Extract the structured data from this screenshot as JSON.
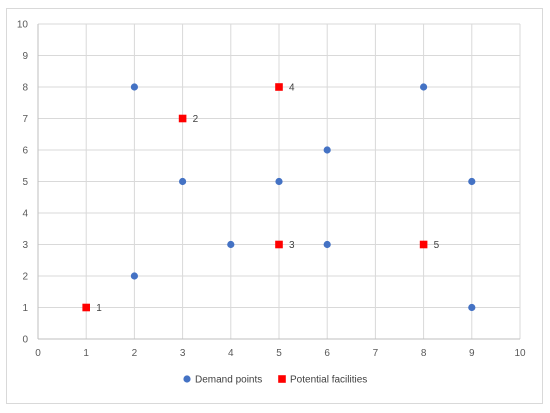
{
  "chart_data": {
    "type": "scatter",
    "title": "",
    "xlabel": "",
    "ylabel": "",
    "xlim": [
      0,
      10
    ],
    "ylim": [
      0,
      10
    ],
    "x_ticks": [
      0,
      1,
      2,
      3,
      4,
      5,
      6,
      7,
      8,
      9,
      10
    ],
    "y_ticks": [
      0,
      1,
      2,
      3,
      4,
      5,
      6,
      7,
      8,
      9,
      10
    ],
    "grid": true,
    "legend_position": "bottom",
    "series": [
      {
        "name": "Demand points",
        "marker": "circle",
        "color": "#4472c4",
        "points": [
          {
            "x": 2,
            "y": 8
          },
          {
            "x": 2,
            "y": 2
          },
          {
            "x": 3,
            "y": 5
          },
          {
            "x": 4,
            "y": 3
          },
          {
            "x": 5,
            "y": 5
          },
          {
            "x": 6,
            "y": 6
          },
          {
            "x": 6,
            "y": 3
          },
          {
            "x": 8,
            "y": 8
          },
          {
            "x": 9,
            "y": 5
          },
          {
            "x": 9,
            "y": 1
          }
        ]
      },
      {
        "name": "Potential facilities",
        "marker": "square",
        "color": "#ff0000",
        "points": [
          {
            "x": 1,
            "y": 1,
            "label": "1"
          },
          {
            "x": 3,
            "y": 7,
            "label": "2"
          },
          {
            "x": 5,
            "y": 3,
            "label": "3"
          },
          {
            "x": 5,
            "y": 8,
            "label": "4"
          },
          {
            "x": 8,
            "y": 3,
            "label": "5"
          }
        ]
      }
    ]
  },
  "colors": {
    "grid": "#d9d9d9",
    "axis": "#bfbfbf",
    "tick_text": "#595959"
  }
}
